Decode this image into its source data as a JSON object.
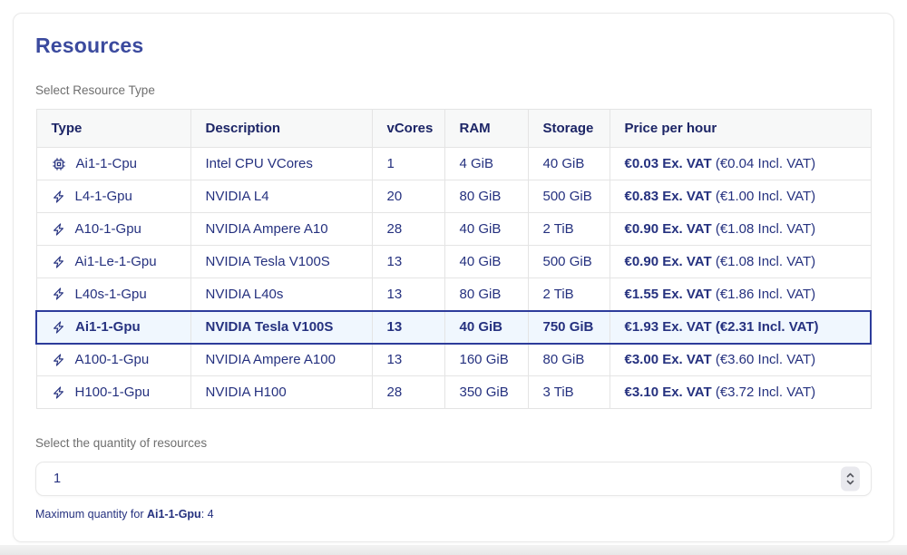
{
  "card": {
    "title": "Resources",
    "table_label": "Select Resource Type",
    "quantity_label": "Select the quantity of resources",
    "max_note_prefix": "Maximum quantity for ",
    "max_note_type": "Ai1-1-Gpu",
    "max_note_suffix": ": 4"
  },
  "quantity": {
    "value": "1"
  },
  "icons": {
    "stepper": "up-down-chevrons-icon",
    "cpu": "cpu-chip-icon",
    "gpu": "lightning-bolt-icon"
  },
  "colors": {
    "title": "#3b4a9e",
    "table_text": "#25317f",
    "header_text": "#1c2566",
    "label_gray": "#6f6f6f",
    "border": "#e4e4e4",
    "header_bg": "#f7f8f8",
    "selected_border": "#2d3c9b",
    "selected_bg": "#f0f7fe"
  },
  "table": {
    "headers": [
      "Type",
      "Description",
      "vCores",
      "RAM",
      "Storage",
      "Price per hour"
    ],
    "rows": [
      {
        "icon": "cpu",
        "type": "Ai1-1-Cpu",
        "description": "Intel CPU VCores",
        "vcores": "1",
        "ram": "4 GiB",
        "storage": "40 GiB",
        "price_ex": "€0.03 Ex. VAT",
        "price_incl": " (€0.04 Incl. VAT)",
        "selected": false
      },
      {
        "icon": "gpu",
        "type": "L4-1-Gpu",
        "description": "NVIDIA L4",
        "vcores": "20",
        "ram": "80 GiB",
        "storage": "500 GiB",
        "price_ex": "€0.83 Ex. VAT",
        "price_incl": " (€1.00 Incl. VAT)",
        "selected": false
      },
      {
        "icon": "gpu",
        "type": "A10-1-Gpu",
        "description": "NVIDIA Ampere A10",
        "vcores": "28",
        "ram": "40 GiB",
        "storage": "2 TiB",
        "price_ex": "€0.90 Ex. VAT",
        "price_incl": " (€1.08 Incl. VAT)",
        "selected": false
      },
      {
        "icon": "gpu",
        "type": "Ai1-Le-1-Gpu",
        "description": "NVIDIA Tesla V100S",
        "vcores": "13",
        "ram": "40 GiB",
        "storage": "500 GiB",
        "price_ex": "€0.90 Ex. VAT",
        "price_incl": " (€1.08 Incl. VAT)",
        "selected": false
      },
      {
        "icon": "gpu",
        "type": "L40s-1-Gpu",
        "description": "NVIDIA L40s",
        "vcores": "13",
        "ram": "80 GiB",
        "storage": "2 TiB",
        "price_ex": "€1.55 Ex. VAT",
        "price_incl": " (€1.86 Incl. VAT)",
        "selected": false
      },
      {
        "icon": "gpu",
        "type": "Ai1-1-Gpu",
        "description": "NVIDIA Tesla V100S",
        "vcores": "13",
        "ram": "40 GiB",
        "storage": "750 GiB",
        "price_ex": "€1.93 Ex. VAT",
        "price_incl": " (€2.31 Incl. VAT)",
        "selected": true
      },
      {
        "icon": "gpu",
        "type": "A100-1-Gpu",
        "description": "NVIDIA Ampere A100",
        "vcores": "13",
        "ram": "160 GiB",
        "storage": "80 GiB",
        "price_ex": "€3.00 Ex. VAT",
        "price_incl": " (€3.60 Incl. VAT)",
        "selected": false
      },
      {
        "icon": "gpu",
        "type": "H100-1-Gpu",
        "description": "NVIDIA H100",
        "vcores": "28",
        "ram": "350 GiB",
        "storage": "3 TiB",
        "price_ex": "€3.10 Ex. VAT",
        "price_incl": " (€3.72 Incl. VAT)",
        "selected": false
      }
    ]
  }
}
